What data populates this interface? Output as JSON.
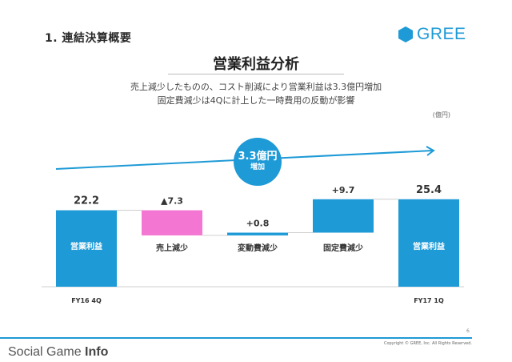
{
  "slide": {
    "section_title": "1. 連結決算概要",
    "logo_text": "GREE",
    "title": "営業利益分析",
    "subtitle_line1": "売上減少したものの、コスト削減により営業利益は3.3億円増加",
    "subtitle_line2": "固定費減少は4Qに計上した一時費用の反動が影響",
    "unit": "(億円)",
    "badge_value": "3.3億円",
    "badge_text": "増加",
    "page_number": "6",
    "copyright": "Copyright © GREE, Inc. All Rights Reserved.",
    "watermark_regular": "Social Game ",
    "watermark_bold": "Info"
  },
  "colors": {
    "accent": "#1e9ad6",
    "decrease": "#f377d2",
    "text_dark": "#333333"
  },
  "chart_data": {
    "type": "bar",
    "subtype": "waterfall",
    "unit": "(億円)",
    "categories": [
      "営業利益",
      "売上減少",
      "変動費減少",
      "固定費減少",
      "営業利益"
    ],
    "values": [
      22.2,
      -7.3,
      0.8,
      9.7,
      25.4
    ],
    "kinds": [
      "total",
      "delta",
      "delta",
      "delta",
      "total"
    ],
    "value_labels": [
      "22.2",
      "▲7.3",
      "+0.8",
      "+9.7",
      "25.4"
    ],
    "period_labels": [
      "FY16 4Q",
      "",
      "",
      "",
      "FY17 1Q"
    ],
    "annotation": "3.3億円 増加"
  }
}
